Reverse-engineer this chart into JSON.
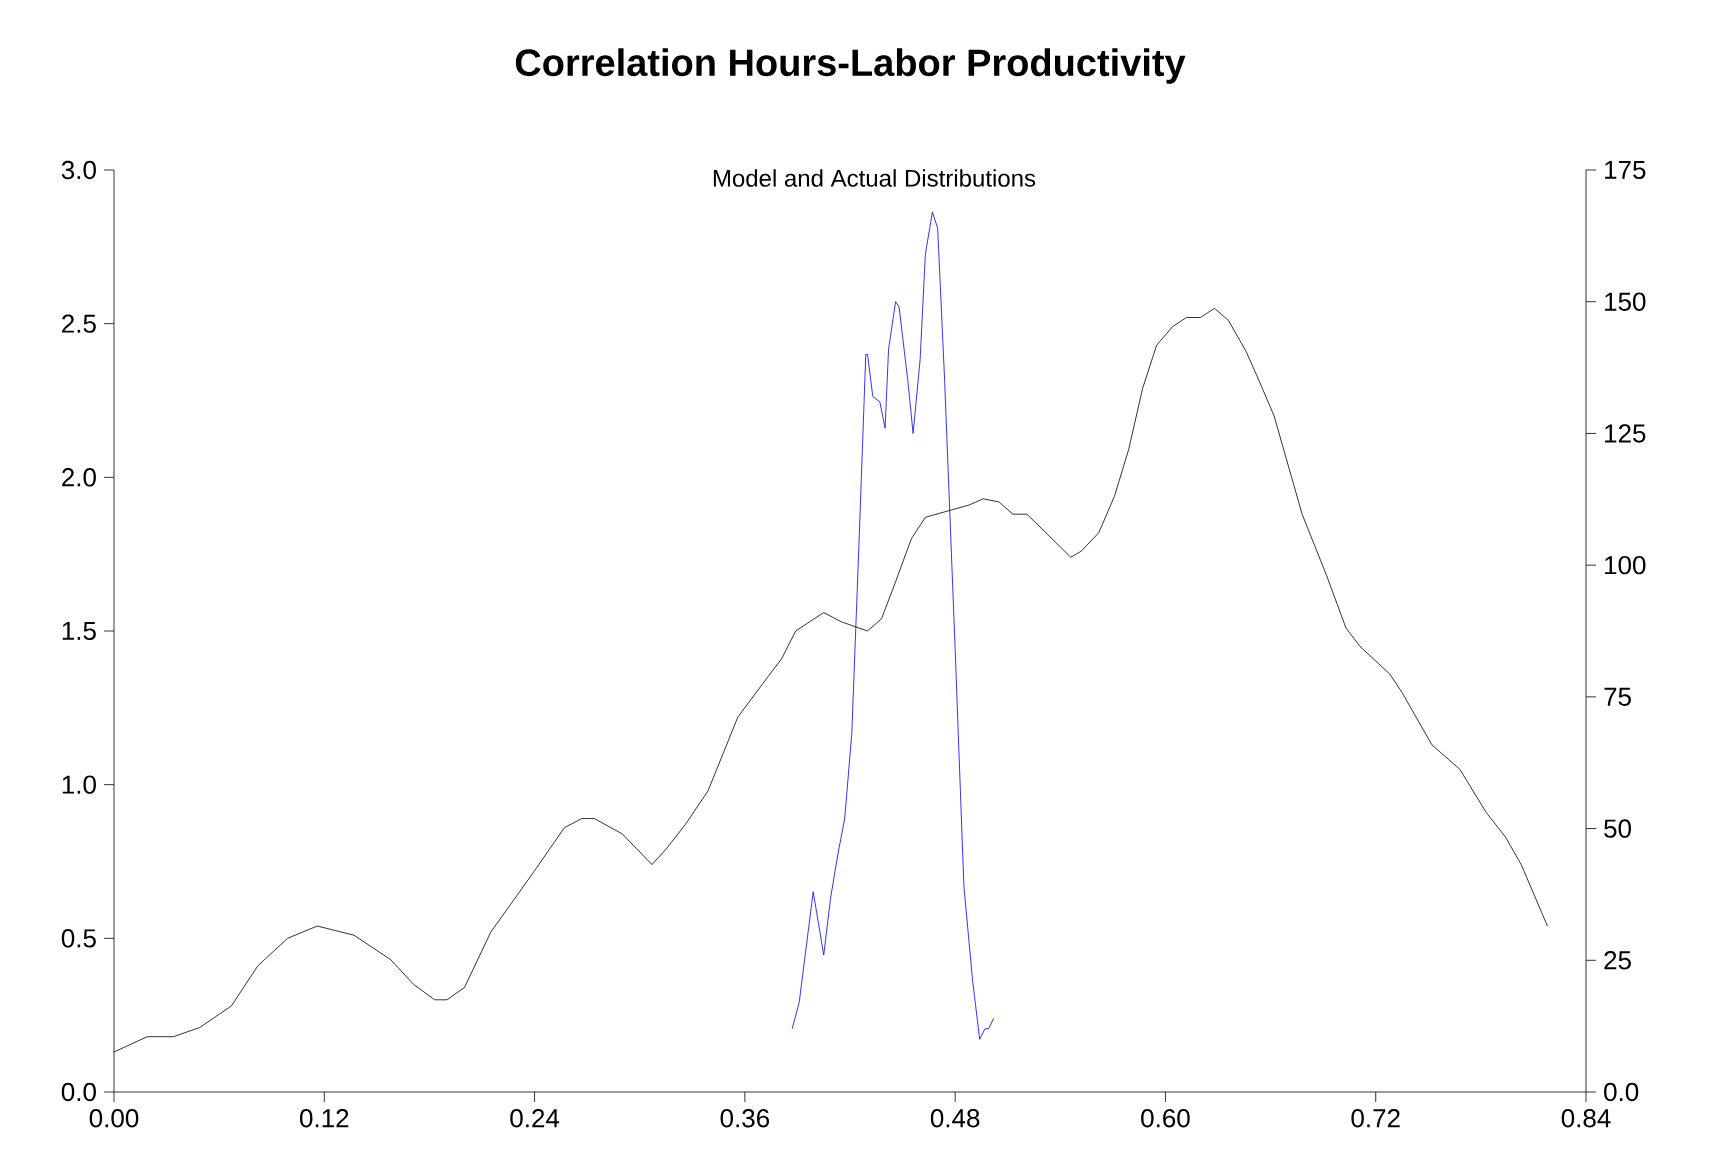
{
  "chart_data": {
    "type": "line",
    "title": "Correlation Hours-Labor Productivity",
    "subtitle": "Model and Actual Distributions",
    "xlim": [
      0,
      0.84
    ],
    "xticks": [
      {
        "value": 0,
        "label": "0.00"
      },
      {
        "value": 0.12,
        "label": "0.12"
      },
      {
        "value": 0.24,
        "label": "0.24"
      },
      {
        "value": 0.36,
        "label": "0.36"
      },
      {
        "value": 0.48,
        "label": "0.48"
      },
      {
        "value": 0.6,
        "label": "0.60"
      },
      {
        "value": 0.72,
        "label": "0.72"
      },
      {
        "value": 0.84,
        "label": "0.84"
      }
    ],
    "ylim": [
      0,
      3.0
    ],
    "yticks": [
      {
        "value": 0,
        "label": "0.0"
      },
      {
        "value": 0.5,
        "label": "0.5"
      },
      {
        "value": 1.0,
        "label": "1.0"
      },
      {
        "value": 1.5,
        "label": "1.5"
      },
      {
        "value": 2.0,
        "label": "2.0"
      },
      {
        "value": 2.5,
        "label": "2.5"
      },
      {
        "value": 3.0,
        "label": "3.0"
      }
    ],
    "y2lim": [
      0,
      175
    ],
    "y2ticks": [
      {
        "value": 0,
        "label": "0.0"
      },
      25,
      50,
      75,
      100,
      125,
      150,
      175
    ],
    "grid": false,
    "marker": "none",
    "series": [
      {
        "color": "#000000",
        "x": [
          0,
          0.019,
          0.034,
          0.049,
          0.067,
          0.082,
          0.099,
          0.116,
          0.137,
          0.158,
          0.171,
          0.183,
          0.19,
          0.2,
          0.215,
          0.24,
          0.257,
          0.267,
          0.274,
          0.29,
          0.307,
          0.315,
          0.326,
          0.339,
          0.356,
          0.373,
          0.381,
          0.389,
          0.405,
          0.415,
          0.43,
          0.438,
          0.446,
          0.455,
          0.463,
          0.488,
          0.496,
          0.505,
          0.513,
          0.521,
          0.546,
          0.552,
          0.562,
          0.571,
          0.579,
          0.587,
          0.595,
          0.604,
          0.612,
          0.62,
          0.628,
          0.636,
          0.646,
          0.653,
          0.662,
          0.67,
          0.678,
          0.692,
          0.703,
          0.711,
          0.728,
          0.735,
          0.752,
          0.768,
          0.783,
          0.794,
          0.803,
          0.818
        ],
        "values": [
          0.13,
          0.18,
          0.18,
          0.21,
          0.28,
          0.41,
          0.5,
          0.54,
          0.51,
          0.43,
          0.35,
          0.3,
          0.3,
          0.34,
          0.52,
          0.72,
          0.86,
          0.89,
          0.89,
          0.84,
          0.74,
          0.79,
          0.87,
          0.98,
          1.22,
          1.35,
          1.41,
          1.5,
          1.56,
          1.53,
          1.5,
          1.54,
          1.66,
          1.8,
          1.87,
          1.91,
          1.93,
          1.92,
          1.88,
          1.88,
          1.74,
          1.76,
          1.82,
          1.94,
          2.09,
          2.29,
          2.43,
          2.49,
          2.52,
          2.52,
          2.55,
          2.51,
          2.41,
          2.32,
          2.2,
          2.04,
          1.88,
          1.68,
          1.51,
          1.45,
          1.36,
          1.3,
          1.13,
          1.05,
          0.91,
          0.83,
          0.74,
          0.54
        ]
      },
      {
        "color": "#0000ff",
        "axis": "y2",
        "x": [
          0.387,
          0.391,
          0.399,
          0.405,
          0.409,
          0.413,
          0.417,
          0.421,
          0.425,
          0.429,
          0.43,
          0.433,
          0.437,
          0.44,
          0.442,
          0.446,
          0.448,
          0.453,
          0.456,
          0.46,
          0.463,
          0.467,
          0.47,
          0.474,
          0.48,
          0.485,
          0.49,
          0.494,
          0.497,
          0.499,
          0.502
        ],
        "values": [
          12,
          17,
          38,
          26,
          37,
          45,
          52,
          68,
          103,
          140,
          140,
          132,
          131,
          126,
          141,
          150,
          149,
          135,
          125,
          139,
          159,
          167,
          164,
          135,
          84,
          39,
          21,
          10,
          12,
          12,
          14
        ]
      }
    ]
  }
}
